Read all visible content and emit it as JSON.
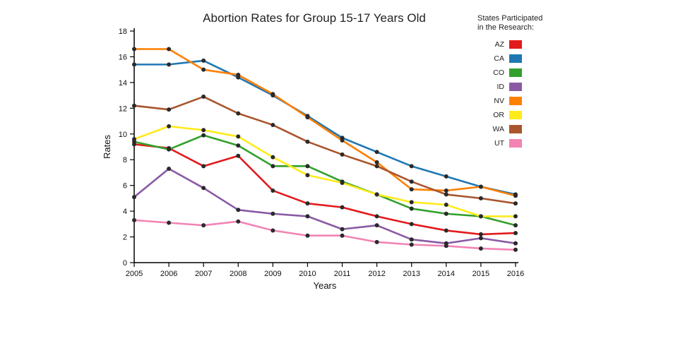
{
  "title": "Abortion Rates for Group 15-17 Years Old",
  "legend": {
    "title_line1": "States Participated",
    "title_line2": "in the Research:",
    "items": [
      {
        "label": "AZ",
        "color": "#e31a1c"
      },
      {
        "label": "CA",
        "color": "#1f78b4"
      },
      {
        "label": "CO",
        "color": "#33a02c"
      },
      {
        "label": "ID",
        "color": "#8a5aa5"
      },
      {
        "label": "NV",
        "color": "#ff7f00"
      },
      {
        "label": "OR",
        "color": "#ffeb1a"
      },
      {
        "label": "WA",
        "color": "#a9552d"
      },
      {
        "label": "UT",
        "color": "#f284b5"
      }
    ]
  },
  "chart_data": {
    "type": "line",
    "title": "Abortion Rates for Group 15-17 Years Old",
    "xlabel": "Years",
    "ylabel": "Rates",
    "x": [
      2005,
      2006,
      2007,
      2008,
      2009,
      2010,
      2011,
      2012,
      2013,
      2014,
      2015,
      2016
    ],
    "ylim": [
      0,
      18
    ],
    "ytick_step": 2,
    "grid": false,
    "legend_position": "top-right",
    "marker_color": "#2a2a2a",
    "series": [
      {
        "name": "AZ",
        "color": "#e31a1c",
        "values": [
          9.2,
          8.9,
          7.5,
          8.3,
          5.6,
          4.6,
          4.3,
          3.6,
          3.0,
          2.5,
          2.2,
          2.3
        ]
      },
      {
        "name": "CA",
        "color": "#1f78b4",
        "values": [
          15.4,
          15.4,
          15.7,
          14.4,
          13.0,
          11.4,
          9.7,
          8.6,
          7.5,
          6.7,
          5.9,
          5.3
        ]
      },
      {
        "name": "CO",
        "color": "#33a02c",
        "values": [
          9.4,
          8.8,
          9.9,
          9.1,
          7.5,
          7.5,
          6.3,
          5.3,
          4.2,
          3.8,
          3.6,
          2.9
        ]
      },
      {
        "name": "ID",
        "color": "#8a5aa5",
        "values": [
          5.1,
          7.3,
          5.8,
          4.1,
          3.8,
          3.6,
          2.6,
          2.9,
          1.8,
          1.5,
          1.9,
          1.5
        ]
      },
      {
        "name": "NV",
        "color": "#ff7f00",
        "values": [
          16.6,
          16.6,
          15.0,
          14.6,
          13.1,
          11.3,
          9.5,
          7.8,
          5.7,
          5.6,
          5.9,
          5.2
        ]
      },
      {
        "name": "OR",
        "color": "#ffeb1a",
        "values": [
          9.6,
          10.6,
          10.3,
          9.8,
          8.2,
          6.8,
          6.2,
          5.3,
          4.7,
          4.5,
          3.6,
          3.6
        ]
      },
      {
        "name": "WA",
        "color": "#a9552d",
        "values": [
          12.2,
          11.9,
          12.9,
          11.6,
          10.7,
          9.4,
          8.4,
          7.5,
          6.3,
          5.3,
          5.0,
          4.6
        ]
      },
      {
        "name": "UT",
        "color": "#f284b5",
        "values": [
          3.3,
          3.1,
          2.9,
          3.2,
          2.5,
          2.1,
          2.1,
          1.6,
          1.4,
          1.3,
          1.1,
          1.0
        ]
      }
    ]
  }
}
